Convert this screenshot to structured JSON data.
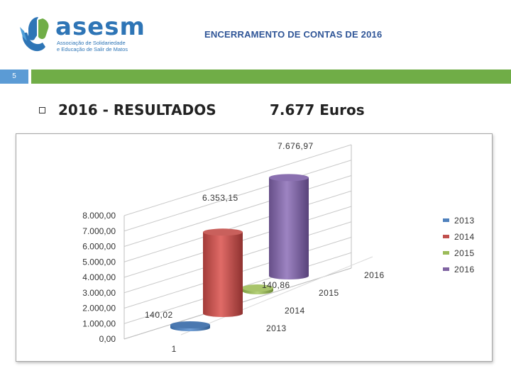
{
  "header": {
    "logo_name": "asesm",
    "logo_subtitle_1": "Associação de Solidariedade",
    "logo_subtitle_2": "e Educação de Salir de Matos",
    "title": "ENCERRAMENTO DE CONTAS DE 2016",
    "slide_number": "5"
  },
  "content": {
    "heading": "2016  -  RESULTADOS",
    "amount": "7.677 Euros"
  },
  "colors": {
    "accent_blue": "#5b9bd5",
    "accent_green": "#70ad47",
    "series_2013": "#4f81bd",
    "series_2014": "#c0504d",
    "series_2015": "#9bbb59",
    "series_2016": "#8064a2"
  },
  "chart_data": {
    "type": "bar",
    "style": "3d-cylinder",
    "title": "",
    "category_label": "1",
    "depth_labels": [
      "2013",
      "2014",
      "2015",
      "2016"
    ],
    "y_ticks": [
      "0,00",
      "1.000,00",
      "2.000,00",
      "3.000,00",
      "4.000,00",
      "5.000,00",
      "6.000,00",
      "7.000,00",
      "8.000,00"
    ],
    "ylim": [
      0,
      8000
    ],
    "legend_position": "right",
    "series": [
      {
        "name": "2013",
        "value": 0,
        "label": ""
      },
      {
        "name": "2014",
        "value": 6353.15,
        "label": "6.353,15"
      },
      {
        "name": "2015",
        "value": 140.86,
        "label": "140,86"
      },
      {
        "name": "2016",
        "value": 7676.97,
        "label": "7.676,97"
      }
    ],
    "extra_labels": [
      {
        "text": "140,02"
      }
    ]
  }
}
